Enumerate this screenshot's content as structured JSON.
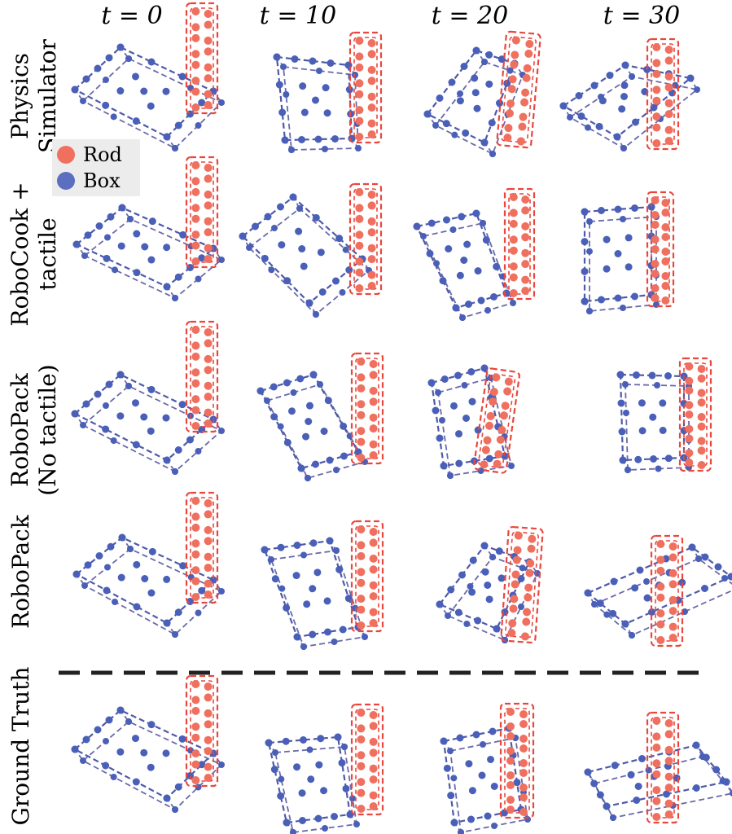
{
  "columns": [
    "t = 0",
    "t = 10",
    "t = 20",
    "t = 30"
  ],
  "rows": [
    {
      "id": "physics",
      "lines": [
        "Physics",
        "Simulator"
      ]
    },
    {
      "id": "robocook",
      "lines": [
        "RoboCook +",
        "tactile"
      ]
    },
    {
      "id": "nopack",
      "lines": [
        "RoboPack",
        "(No tactile)"
      ]
    },
    {
      "id": "robopack",
      "lines": [
        "RoboPack"
      ]
    },
    {
      "id": "gt",
      "lines": [
        "Ground Truth"
      ]
    }
  ],
  "legend": [
    {
      "label": "Rod",
      "color": "#f0705f"
    },
    {
      "label": "Box",
      "color": "#5b6ec0"
    }
  ],
  "colors": {
    "rod": "#e8473e",
    "rod_dot": "#f0705f",
    "box": "#4e5aa8",
    "box_dot": "#4a5fb8",
    "box_line": "#6a6aaa"
  }
}
